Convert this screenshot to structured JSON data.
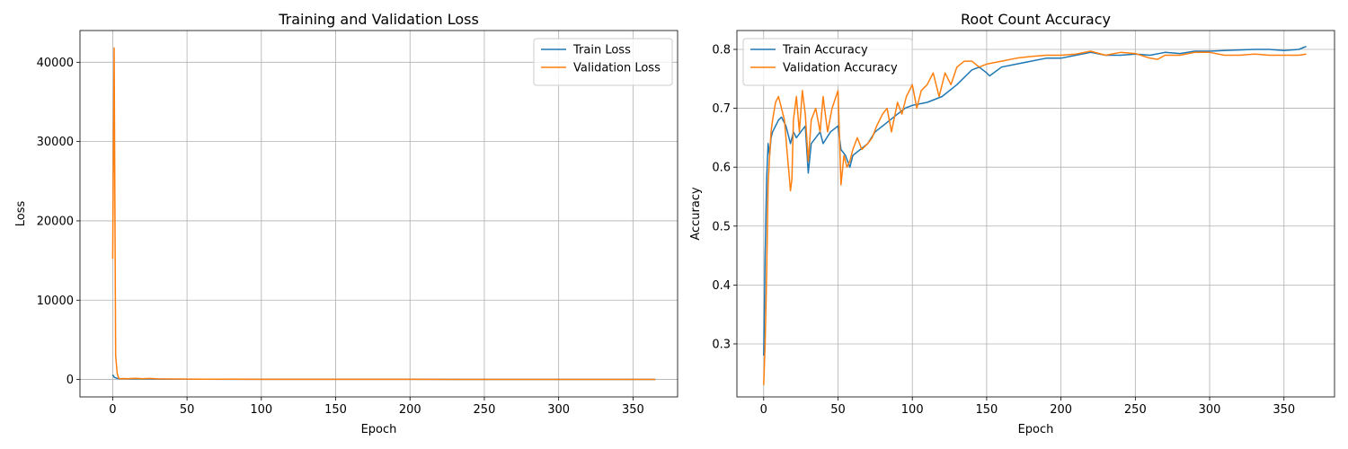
{
  "chart_data": [
    {
      "type": "line",
      "title": "Training and Validation Loss",
      "xlabel": "Epoch",
      "ylabel": "Loss",
      "xlim": [
        -22,
        380
      ],
      "ylim": [
        -2200,
        44000
      ],
      "xticks": [
        0,
        50,
        100,
        150,
        200,
        250,
        300,
        350
      ],
      "yticks": [
        0,
        10000,
        20000,
        30000,
        40000
      ],
      "grid": true,
      "legend": "upper right",
      "series": [
        {
          "name": "Train Loss",
          "color": "#1f77b4",
          "x": [
            0,
            1,
            2,
            3,
            5,
            10,
            15,
            20,
            25,
            30,
            40,
            50,
            60,
            80,
            100,
            150,
            200,
            250,
            300,
            365
          ],
          "y": [
            600,
            300,
            200,
            150,
            100,
            80,
            90,
            60,
            70,
            50,
            40,
            35,
            30,
            25,
            20,
            18,
            15,
            12,
            10,
            10
          ]
        },
        {
          "name": "Validation Loss",
          "color": "#ff7f0e",
          "x": [
            0,
            1,
            2,
            3,
            4,
            5,
            7,
            10,
            15,
            20,
            25,
            30,
            40,
            50,
            60,
            80,
            100,
            150,
            200,
            250,
            300,
            365
          ],
          "y": [
            15200,
            41800,
            3000,
            800,
            150,
            100,
            120,
            90,
            150,
            100,
            130,
            80,
            60,
            50,
            40,
            30,
            25,
            20,
            15,
            12,
            10,
            10
          ]
        }
      ]
    },
    {
      "type": "line",
      "title": "Root Count Accuracy",
      "xlabel": "Epoch",
      "ylabel": "Accuracy",
      "xlim": [
        -18,
        384
      ],
      "ylim": [
        0.21,
        0.832
      ],
      "xticks": [
        0,
        50,
        100,
        150,
        200,
        250,
        300,
        350
      ],
      "yticks": [
        0.3,
        0.4,
        0.5,
        0.6,
        0.7,
        0.8
      ],
      "grid": true,
      "legend": "upper left",
      "series": [
        {
          "name": "Train Accuracy",
          "color": "#1f77b4",
          "x": [
            0,
            1,
            2,
            3,
            4,
            5,
            6,
            8,
            10,
            12,
            15,
            18,
            20,
            22,
            25,
            28,
            30,
            32,
            35,
            38,
            40,
            45,
            50,
            52,
            55,
            58,
            60,
            65,
            70,
            75,
            80,
            85,
            90,
            95,
            100,
            110,
            120,
            130,
            140,
            145,
            150,
            152,
            160,
            170,
            180,
            190,
            200,
            210,
            220,
            230,
            240,
            250,
            260,
            270,
            280,
            290,
            300,
            310,
            320,
            330,
            340,
            350,
            360,
            365
          ],
          "y": [
            0.28,
            0.45,
            0.58,
            0.64,
            0.62,
            0.65,
            0.66,
            0.67,
            0.68,
            0.685,
            0.67,
            0.64,
            0.66,
            0.65,
            0.66,
            0.67,
            0.59,
            0.64,
            0.65,
            0.66,
            0.64,
            0.66,
            0.67,
            0.63,
            0.62,
            0.6,
            0.62,
            0.63,
            0.64,
            0.66,
            0.67,
            0.68,
            0.69,
            0.7,
            0.705,
            0.71,
            0.72,
            0.74,
            0.765,
            0.77,
            0.76,
            0.755,
            0.77,
            0.775,
            0.78,
            0.785,
            0.785,
            0.79,
            0.795,
            0.79,
            0.79,
            0.792,
            0.79,
            0.795,
            0.793,
            0.797,
            0.797,
            0.798,
            0.799,
            0.8,
            0.8,
            0.798,
            0.8,
            0.805
          ]
        },
        {
          "name": "Validation Accuracy",
          "color": "#ff7f0e",
          "x": [
            0,
            1,
            2,
            3,
            4,
            5,
            6,
            8,
            10,
            12,
            14,
            16,
            18,
            19,
            20,
            22,
            24,
            26,
            28,
            30,
            32,
            35,
            38,
            40,
            43,
            46,
            50,
            52,
            54,
            56,
            58,
            60,
            63,
            66,
            70,
            73,
            76,
            80,
            83,
            86,
            90,
            93,
            96,
            100,
            103,
            106,
            110,
            114,
            118,
            122,
            126,
            130,
            135,
            140,
            145,
            150,
            160,
            170,
            180,
            190,
            200,
            210,
            220,
            230,
            240,
            250,
            260,
            265,
            270,
            280,
            290,
            300,
            310,
            320,
            330,
            340,
            350,
            360,
            365
          ],
          "y": [
            0.23,
            0.3,
            0.42,
            0.57,
            0.62,
            0.66,
            0.68,
            0.71,
            0.72,
            0.7,
            0.68,
            0.62,
            0.56,
            0.58,
            0.68,
            0.72,
            0.66,
            0.73,
            0.69,
            0.61,
            0.68,
            0.7,
            0.66,
            0.72,
            0.66,
            0.7,
            0.73,
            0.57,
            0.62,
            0.6,
            0.61,
            0.63,
            0.65,
            0.63,
            0.64,
            0.65,
            0.67,
            0.69,
            0.7,
            0.66,
            0.71,
            0.69,
            0.72,
            0.74,
            0.7,
            0.73,
            0.74,
            0.76,
            0.72,
            0.76,
            0.74,
            0.77,
            0.78,
            0.78,
            0.77,
            0.775,
            0.78,
            0.785,
            0.788,
            0.79,
            0.79,
            0.792,
            0.797,
            0.79,
            0.795,
            0.793,
            0.785,
            0.783,
            0.79,
            0.79,
            0.795,
            0.795,
            0.79,
            0.79,
            0.792,
            0.79,
            0.79,
            0.79,
            0.792
          ]
        }
      ]
    }
  ]
}
